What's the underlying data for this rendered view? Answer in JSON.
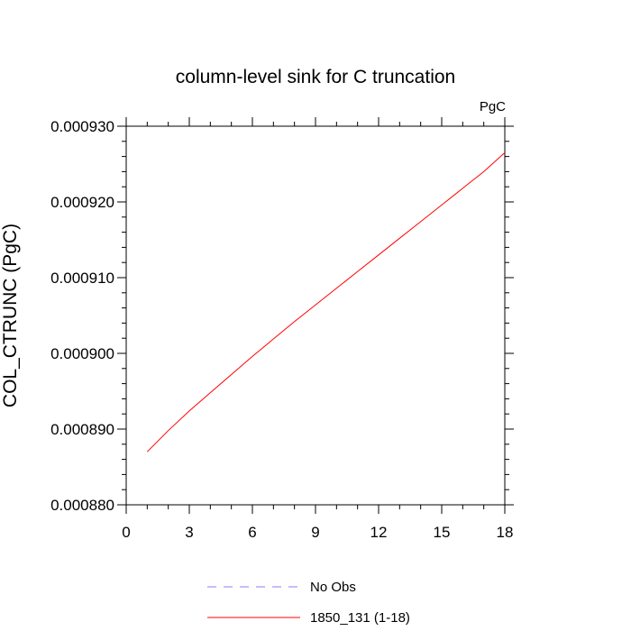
{
  "chart_data": {
    "type": "line",
    "title": "column-level sink for C truncation",
    "units": "PgC",
    "ylabel": "COL_CTRUNC  (PgC)",
    "xlabel": "",
    "xlim": [
      0,
      18
    ],
    "ylim": [
      0.00088,
      0.00093
    ],
    "xticks": [
      "0",
      "3",
      "6",
      "9",
      "12",
      "15",
      "18"
    ],
    "yticks": [
      "0.000880",
      "0.000890",
      "0.000900",
      "0.000910",
      "0.000920",
      "0.000930"
    ],
    "grid": false,
    "legend_position": "bottom-center",
    "series": [
      {
        "name": "No Obs",
        "color": "#8080ff",
        "dash": "dashed",
        "x": [],
        "y": []
      },
      {
        "name": "1850_131 (1-18)",
        "color": "#ff0000",
        "dash": "solid",
        "x": [
          1,
          2,
          3,
          4,
          5,
          6,
          7,
          8,
          9,
          10,
          11,
          12,
          13,
          14,
          15,
          16,
          17,
          18
        ],
        "y": [
          0.000887,
          0.0008898,
          0.0008924,
          0.0008948,
          0.0008972,
          0.0008996,
          0.0009019,
          0.0009042,
          0.0009064,
          0.0009086,
          0.0009108,
          0.000913,
          0.0009152,
          0.0009174,
          0.0009196,
          0.0009218,
          0.000924,
          0.0009265
        ]
      }
    ]
  }
}
